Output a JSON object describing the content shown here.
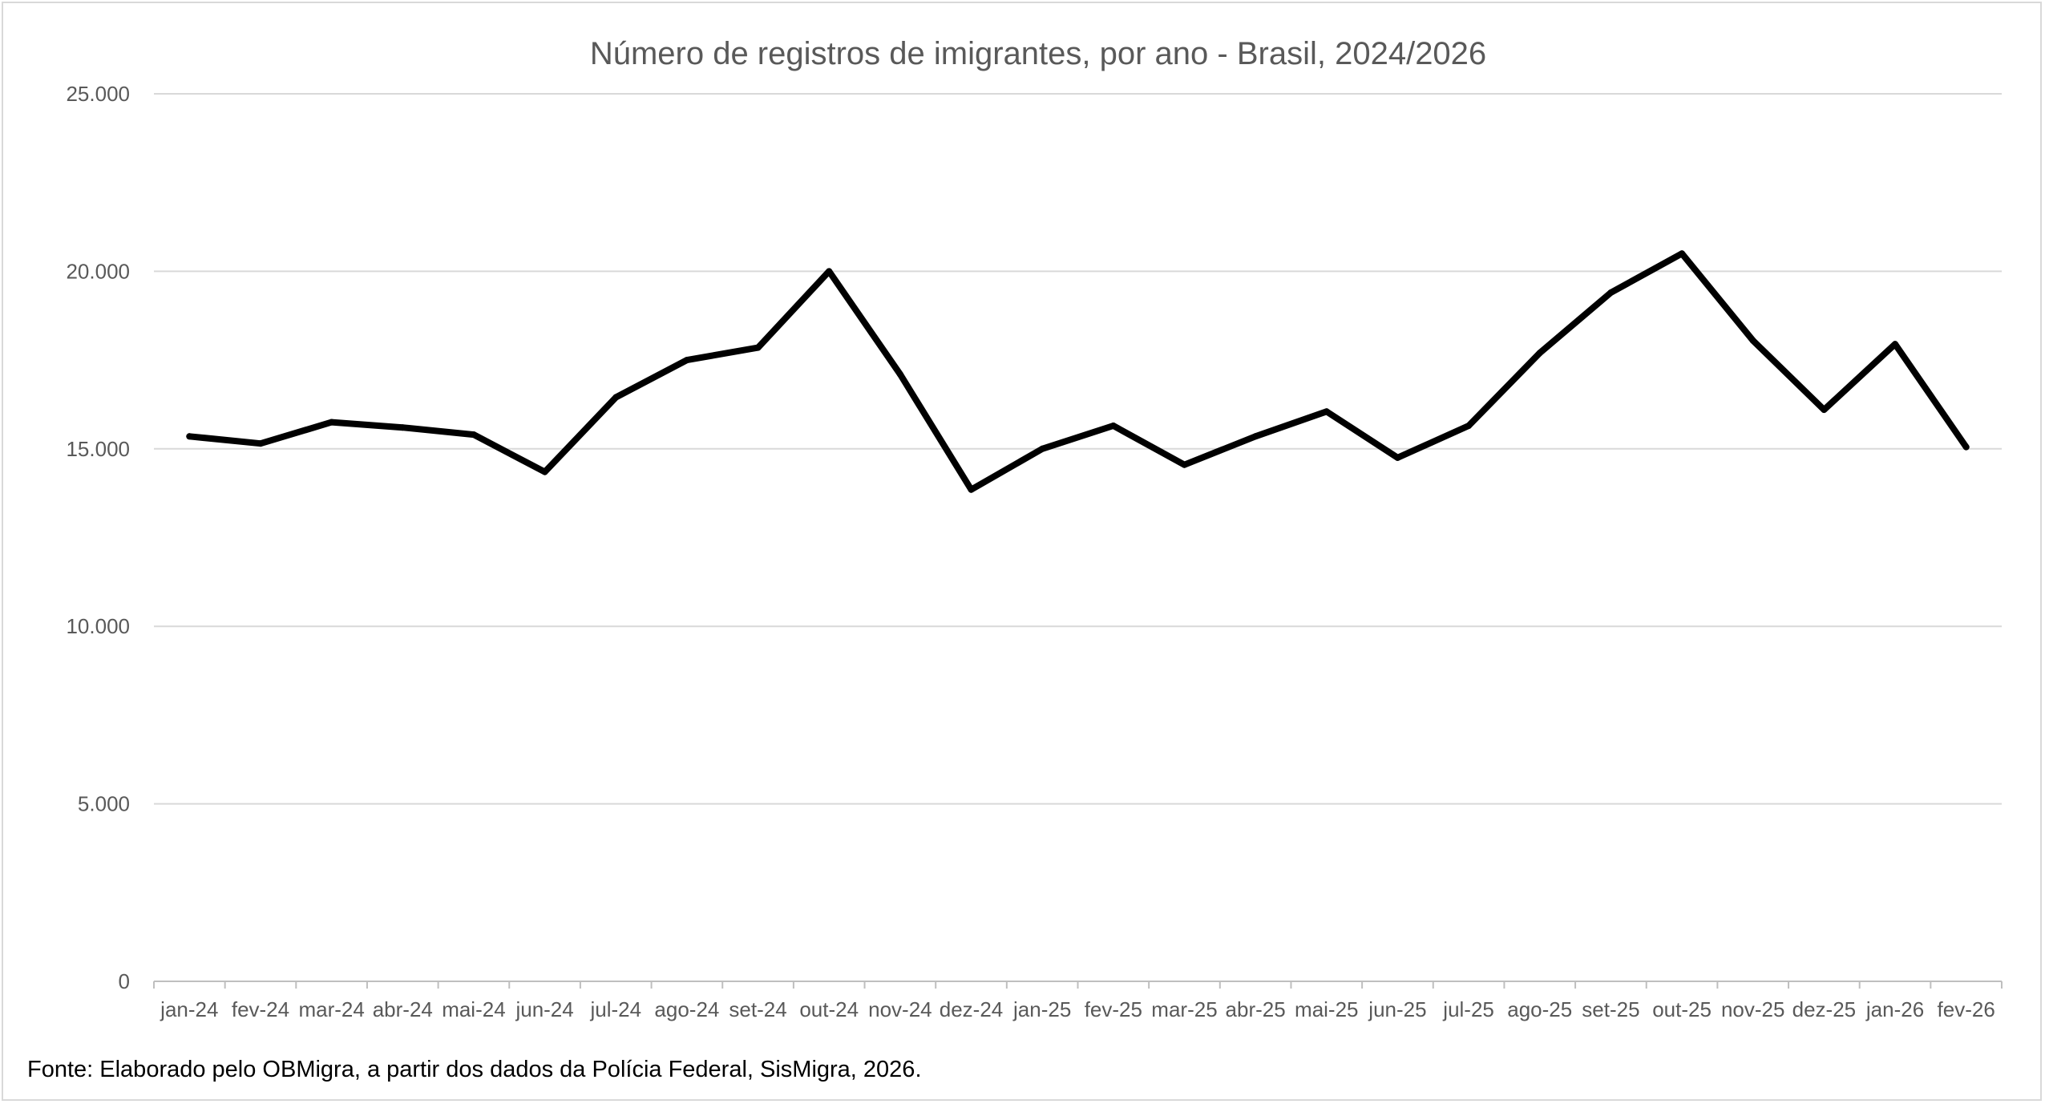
{
  "colors": {
    "line": "#000000",
    "gridline": "#d9d9d9",
    "axis": "#bfbfbf",
    "text": "#595959",
    "border": "#d9d9d9",
    "background": "#ffffff"
  },
  "chart_data": {
    "type": "line",
    "title": "Número de registros de imigrantes, por ano - Brasil, 2024/2026",
    "xlabel": "",
    "ylabel": "",
    "ylim": [
      0,
      25000
    ],
    "yticks": [
      0,
      5000,
      10000,
      15000,
      20000,
      25000
    ],
    "ytick_labels": [
      "0",
      "5.000",
      "10.000",
      "15.000",
      "20.000",
      "25.000"
    ],
    "grid": true,
    "legend": "none",
    "categories": [
      "jan-24",
      "fev-24",
      "mar-24",
      "abr-24",
      "mai-24",
      "jun-24",
      "jul-24",
      "ago-24",
      "set-24",
      "out-24",
      "nov-24",
      "dez-24",
      "jan-25",
      "fev-25",
      "mar-25",
      "abr-25",
      "mai-25",
      "jun-25",
      "jul-25",
      "ago-25",
      "set-25",
      "out-25",
      "nov-25",
      "dez-25",
      "jan-26",
      "fev-26"
    ],
    "series": [
      {
        "name": "Número de registros",
        "values": [
          15350,
          15150,
          15750,
          15600,
          15400,
          14350,
          16450,
          17500,
          17850,
          20000,
          17100,
          13850,
          15000,
          15650,
          14550,
          15350,
          16050,
          14750,
          15650,
          17700,
          19400,
          20500,
          18050,
          16100,
          17950,
          15050
        ]
      }
    ],
    "source": "Fonte: Elaborado pelo OBMigra, a partir dos dados da Polícia Federal, SisMigra, 2026."
  }
}
